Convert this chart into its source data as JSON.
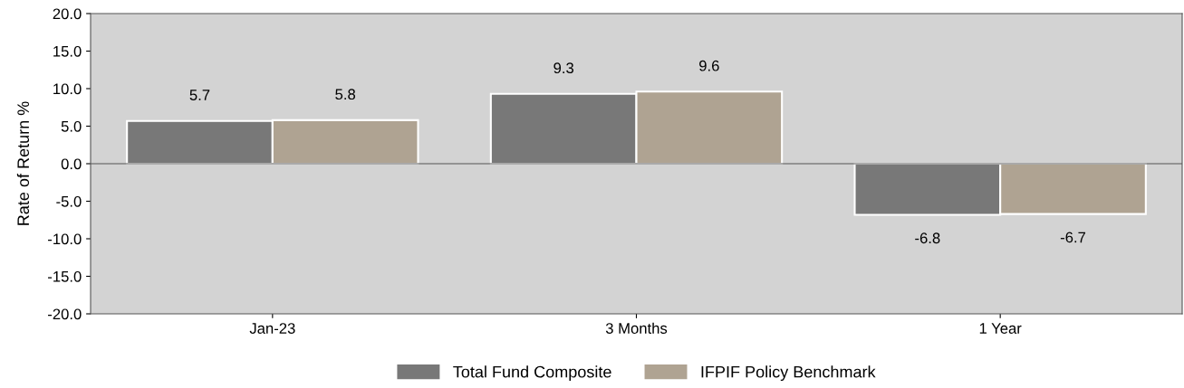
{
  "chart_data": {
    "type": "bar",
    "ylabel": "Rate of Return %",
    "categories": [
      "Jan-23",
      "3 Months",
      "1 Year"
    ],
    "series": [
      {
        "name": "Total Fund Composite",
        "color": "#787878",
        "values": [
          5.7,
          9.3,
          -6.8
        ]
      },
      {
        "name": "IFPIF Policy Benchmark",
        "color": "#afa392",
        "values": [
          5.8,
          9.6,
          -6.7
        ]
      }
    ],
    "ylim": [
      -20,
      20
    ],
    "yticks": [
      {
        "value": -20,
        "label": "-20.0"
      },
      {
        "value": -15,
        "label": "-15.0"
      },
      {
        "value": -10,
        "label": "-10.0"
      },
      {
        "value": -5,
        "label": "-5.0"
      },
      {
        "value": 0,
        "label": "0.0"
      },
      {
        "value": 5,
        "label": "5.0"
      },
      {
        "value": 10,
        "label": "10.0"
      },
      {
        "value": 15,
        "label": "15.0"
      },
      {
        "value": 20,
        "label": "20.0"
      }
    ],
    "ref_lines": [
      {
        "axis": "y",
        "value": 0,
        "color": "#555555"
      }
    ],
    "data_labels": true,
    "grid": false,
    "legend": "bottom"
  }
}
